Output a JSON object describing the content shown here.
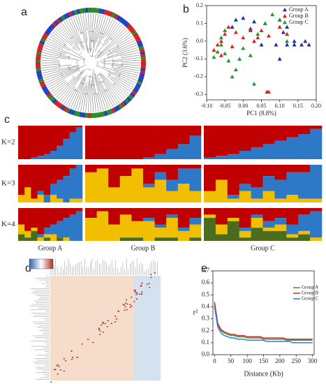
{
  "panel_labels": [
    "a",
    "b",
    "c",
    "d",
    "e"
  ],
  "chart_data": [
    {
      "type": "scatter",
      "xlabel": "PC1 (8.8%)",
      "ylabel": "PC2 (3.6%)",
      "xlim": [
        -0.1,
        0.2
      ],
      "xticks": [
        {
          "value": -0.1,
          "label": "-0.10"
        },
        {
          "value": -0.05,
          "label": "-0.05"
        },
        {
          "value": 0,
          "label": "0.00"
        },
        {
          "value": 0.05,
          "label": "0.05"
        },
        {
          "value": 0.1,
          "label": "0.10"
        },
        {
          "value": 0.15,
          "label": "0.15"
        },
        {
          "value": 0.2,
          "label": "0.20"
        }
      ],
      "ylim": [
        -0.33,
        0.2
      ],
      "yticks": [
        0.2,
        0.1,
        {
          "value": 0,
          "label": "0.0"
        },
        -0.1,
        -0.2,
        -0.3
      ],
      "legend": "top-right",
      "series": [
        {
          "name": "Group A",
          "color": "#1f2fa8",
          "x": [
            -0.02,
            0,
            0.03,
            0.06,
            0.1,
            0.12,
            0.14,
            0.16,
            0.18,
            0.17,
            0.1,
            0.09,
            0.12,
            0.05,
            -0.03,
            0.02,
            0.14,
            0.11
          ],
          "values": [
            0.12,
            0.13,
            0.11,
            0.1,
            0.12,
            0.08,
            0,
            -0.02,
            -0.02,
            0,
            -0.1,
            -0.02,
            -0.02,
            -0.02,
            0.08,
            0.07,
            -0.02,
            0.05
          ]
        },
        {
          "name": "Group B",
          "color": "#e02020",
          "x": [
            -0.08,
            -0.07,
            -0.06,
            -0.05,
            -0.04,
            -0.02,
            0,
            0.02,
            0.03,
            0.05,
            0.07,
            0.1,
            0.12,
            -0.06,
            -0.03,
            0.065,
            0.07,
            0.04
          ],
          "values": [
            -0.05,
            -0.02,
            0,
            0.04,
            0.08,
            0.05,
            0.02,
            0.06,
            0,
            0.06,
            0.03,
            0.08,
            0.04,
            -0.08,
            -0.03,
            -0.285,
            -0.285,
            0.02
          ]
        },
        {
          "name": "Group C",
          "color": "#1e9a2a",
          "x": [
            -0.08,
            -0.07,
            -0.06,
            -0.05,
            -0.04,
            -0.03,
            -0.02,
            -0.01,
            0,
            0.02,
            0.04,
            0.06,
            0.08,
            0.1,
            0.12,
            -0.05,
            0.03,
            -0.06
          ],
          "values": [
            -0.09,
            -0.06,
            -0.02,
            -0.07,
            -0.11,
            -0.2,
            -0.16,
            -0.1,
            -0.04,
            -0.08,
            0.04,
            0.1,
            0.15,
            0.12,
            0,
            0.06,
            -0.24,
            0.02
          ]
        }
      ]
    },
    {
      "type": "structure",
      "k_labels": [
        "K=2",
        "K=3",
        "K=4"
      ],
      "categories": [
        "Group A",
        "Group B",
        "Group C"
      ],
      "colors": [
        "#c00000",
        "#2e78c8",
        "#f2be00",
        "#4b6b1e"
      ],
      "membership": [
        [
          [
            [
              1,
              0
            ],
            [
              1,
              0
            ],
            [
              0.95,
              0.05
            ],
            [
              0.9,
              0.1
            ],
            [
              0.85,
              0.15
            ],
            [
              0.75,
              0.25
            ],
            [
              0.6,
              0.4
            ],
            [
              0.4,
              0.6
            ],
            [
              0.2,
              0.8
            ],
            [
              0.05,
              0.95
            ]
          ],
          [
            [
              1,
              0
            ],
            [
              1,
              0
            ],
            [
              1,
              0
            ],
            [
              1,
              0
            ],
            [
              1,
              0
            ],
            [
              0.95,
              0.05
            ],
            [
              0.85,
              0.15
            ],
            [
              0.7,
              0.3
            ],
            [
              0.55,
              0.45
            ],
            [
              0.3,
              0.7
            ]
          ],
          [
            [
              0.95,
              0.05
            ],
            [
              0.9,
              0.1
            ],
            [
              0.85,
              0.15
            ],
            [
              0.75,
              0.25
            ],
            [
              0.65,
              0.35
            ],
            [
              0.55,
              0.45
            ],
            [
              0.45,
              0.55
            ],
            [
              0.35,
              0.65
            ],
            [
              0.25,
              0.75
            ],
            [
              0.1,
              0.9
            ]
          ]
        ],
        [
          [
            [
              0.8,
              0,
              0.2
            ],
            [
              0.6,
              0,
              0.4
            ],
            [
              0.9,
              0,
              0.1
            ],
            [
              0.7,
              0.1,
              0.2
            ],
            [
              0.8,
              0.2,
              0
            ],
            [
              0.5,
              0.3,
              0.2
            ],
            [
              0.4,
              0.5,
              0.1
            ],
            [
              0.3,
              0.7,
              0
            ],
            [
              0.1,
              0.8,
              0.1
            ],
            [
              0,
              0.9,
              0.1
            ]
          ],
          [
            [
              0.2,
              0,
              0.8
            ],
            [
              0.1,
              0,
              0.9
            ],
            [
              0.6,
              0,
              0.4
            ],
            [
              0.3,
              0,
              0.7
            ],
            [
              0.1,
              0,
              0.9
            ],
            [
              0.5,
              0.1,
              0.4
            ],
            [
              0.2,
              0.2,
              0.6
            ],
            [
              0.4,
              0.3,
              0.3
            ],
            [
              0.1,
              0.4,
              0.5
            ],
            [
              0.1,
              0.6,
              0.3
            ]
          ],
          [
            [
              0.7,
              0,
              0.3
            ],
            [
              0.4,
              0,
              0.6
            ],
            [
              0.8,
              0.1,
              0.1
            ],
            [
              0.5,
              0.2,
              0.3
            ],
            [
              0.6,
              0.3,
              0.1
            ],
            [
              0.3,
              0.4,
              0.3
            ],
            [
              0.4,
              0.5,
              0.1
            ],
            [
              0.2,
              0.6,
              0.2
            ],
            [
              0.2,
              0.7,
              0.1
            ],
            [
              0,
              0.9,
              0.1
            ]
          ]
        ],
        [
          [
            [
              0.5,
              0,
              0.3,
              0.2
            ],
            [
              0.7,
              0,
              0.2,
              0.1
            ],
            [
              0.6,
              0,
              0.1,
              0.3
            ],
            [
              0.8,
              0.1,
              0.1,
              0
            ],
            [
              0.6,
              0.2,
              0.1,
              0.1
            ],
            [
              0.5,
              0.3,
              0.2,
              0
            ],
            [
              0.4,
              0.5,
              0,
              0.1
            ],
            [
              0.3,
              0.6,
              0.1,
              0
            ],
            [
              0.2,
              0.8,
              0,
              0
            ],
            [
              0.1,
              0.9,
              0,
              0
            ]
          ],
          [
            [
              0.3,
              0,
              0.7,
              0
            ],
            [
              0.1,
              0,
              0.9,
              0
            ],
            [
              0.5,
              0,
              0.5,
              0
            ],
            [
              0.2,
              0,
              0.7,
              0.1
            ],
            [
              0.4,
              0,
              0.5,
              0.1
            ],
            [
              0.3,
              0.1,
              0.6,
              0
            ],
            [
              0.5,
              0.1,
              0.3,
              0.1
            ],
            [
              0.2,
              0.1,
              0.6,
              0.1
            ],
            [
              0.6,
              0.1,
              0.3,
              0
            ],
            [
              0.3,
              0.2,
              0.4,
              0.1
            ]
          ],
          [
            [
              0.2,
              0,
              0.1,
              0.7
            ],
            [
              0.5,
              0,
              0.3,
              0.2
            ],
            [
              0.3,
              0,
              0.1,
              0.6
            ],
            [
              0.6,
              0.1,
              0.2,
              0.1
            ],
            [
              0.2,
              0.1,
              0.3,
              0.4
            ],
            [
              0.4,
              0.2,
              0.1,
              0.3
            ],
            [
              0.3,
              0.2,
              0.2,
              0.3
            ],
            [
              0.5,
              0.3,
              0.1,
              0.1
            ],
            [
              0.2,
              0.5,
              0.1,
              0.2
            ],
            [
              0.1,
              0.8,
              0.1,
              0
            ]
          ]
        ]
      ]
    },
    {
      "type": "line",
      "xlabel": "Distance (Kb)",
      "ylabel": "r²",
      "x": [
        0,
        10,
        20,
        30,
        40,
        50,
        60,
        70,
        80,
        90,
        100,
        110,
        120,
        130,
        140,
        150,
        160,
        170,
        180,
        190,
        200,
        210,
        220,
        230,
        240,
        250,
        260,
        270,
        280,
        290,
        300
      ],
      "xlim": [
        -5,
        305
      ],
      "xticks": [
        0,
        50,
        100,
        150,
        200,
        250,
        300
      ],
      "ylim": [
        0,
        0.7
      ],
      "yticks": [
        {
          "value": 0,
          "label": "0.0"
        },
        0.1,
        0.2,
        0.3,
        0.4,
        0.5,
        0.6,
        0.7
      ],
      "legend": "top-right",
      "series": [
        {
          "name": "Group A",
          "color": "#3a9a3a",
          "values": [
            0.42,
            0.25,
            0.2,
            0.18,
            0.17,
            0.16,
            0.16,
            0.15,
            0.15,
            0.15,
            0.14,
            0.14,
            0.14,
            0.14,
            0.14,
            0.13,
            0.13,
            0.13,
            0.13,
            0.13,
            0.13,
            0.13,
            0.12,
            0.12,
            0.12,
            0.12,
            0.12,
            0.12,
            0.12,
            0.12,
            0.12
          ]
        },
        {
          "name": "Group B",
          "color": "#d83030",
          "values": [
            0.44,
            0.26,
            0.21,
            0.19,
            0.18,
            0.17,
            0.17,
            0.16,
            0.16,
            0.16,
            0.15,
            0.15,
            0.15,
            0.15,
            0.15,
            0.14,
            0.14,
            0.14,
            0.14,
            0.14,
            0.14,
            0.14,
            0.13,
            0.13,
            0.13,
            0.13,
            0.13,
            0.13,
            0.13,
            0.13,
            0.13
          ]
        },
        {
          "name": "Group C",
          "color": "#2a7fe0",
          "values": [
            0.4,
            0.23,
            0.18,
            0.16,
            0.15,
            0.14,
            0.14,
            0.13,
            0.13,
            0.13,
            0.12,
            0.12,
            0.12,
            0.12,
            0.12,
            0.12,
            0.11,
            0.11,
            0.11,
            0.11,
            0.11,
            0.11,
            0.11,
            0.11,
            0.1,
            0.1,
            0.1,
            0.1,
            0.1,
            0.1,
            0.1
          ]
        }
      ]
    }
  ]
}
